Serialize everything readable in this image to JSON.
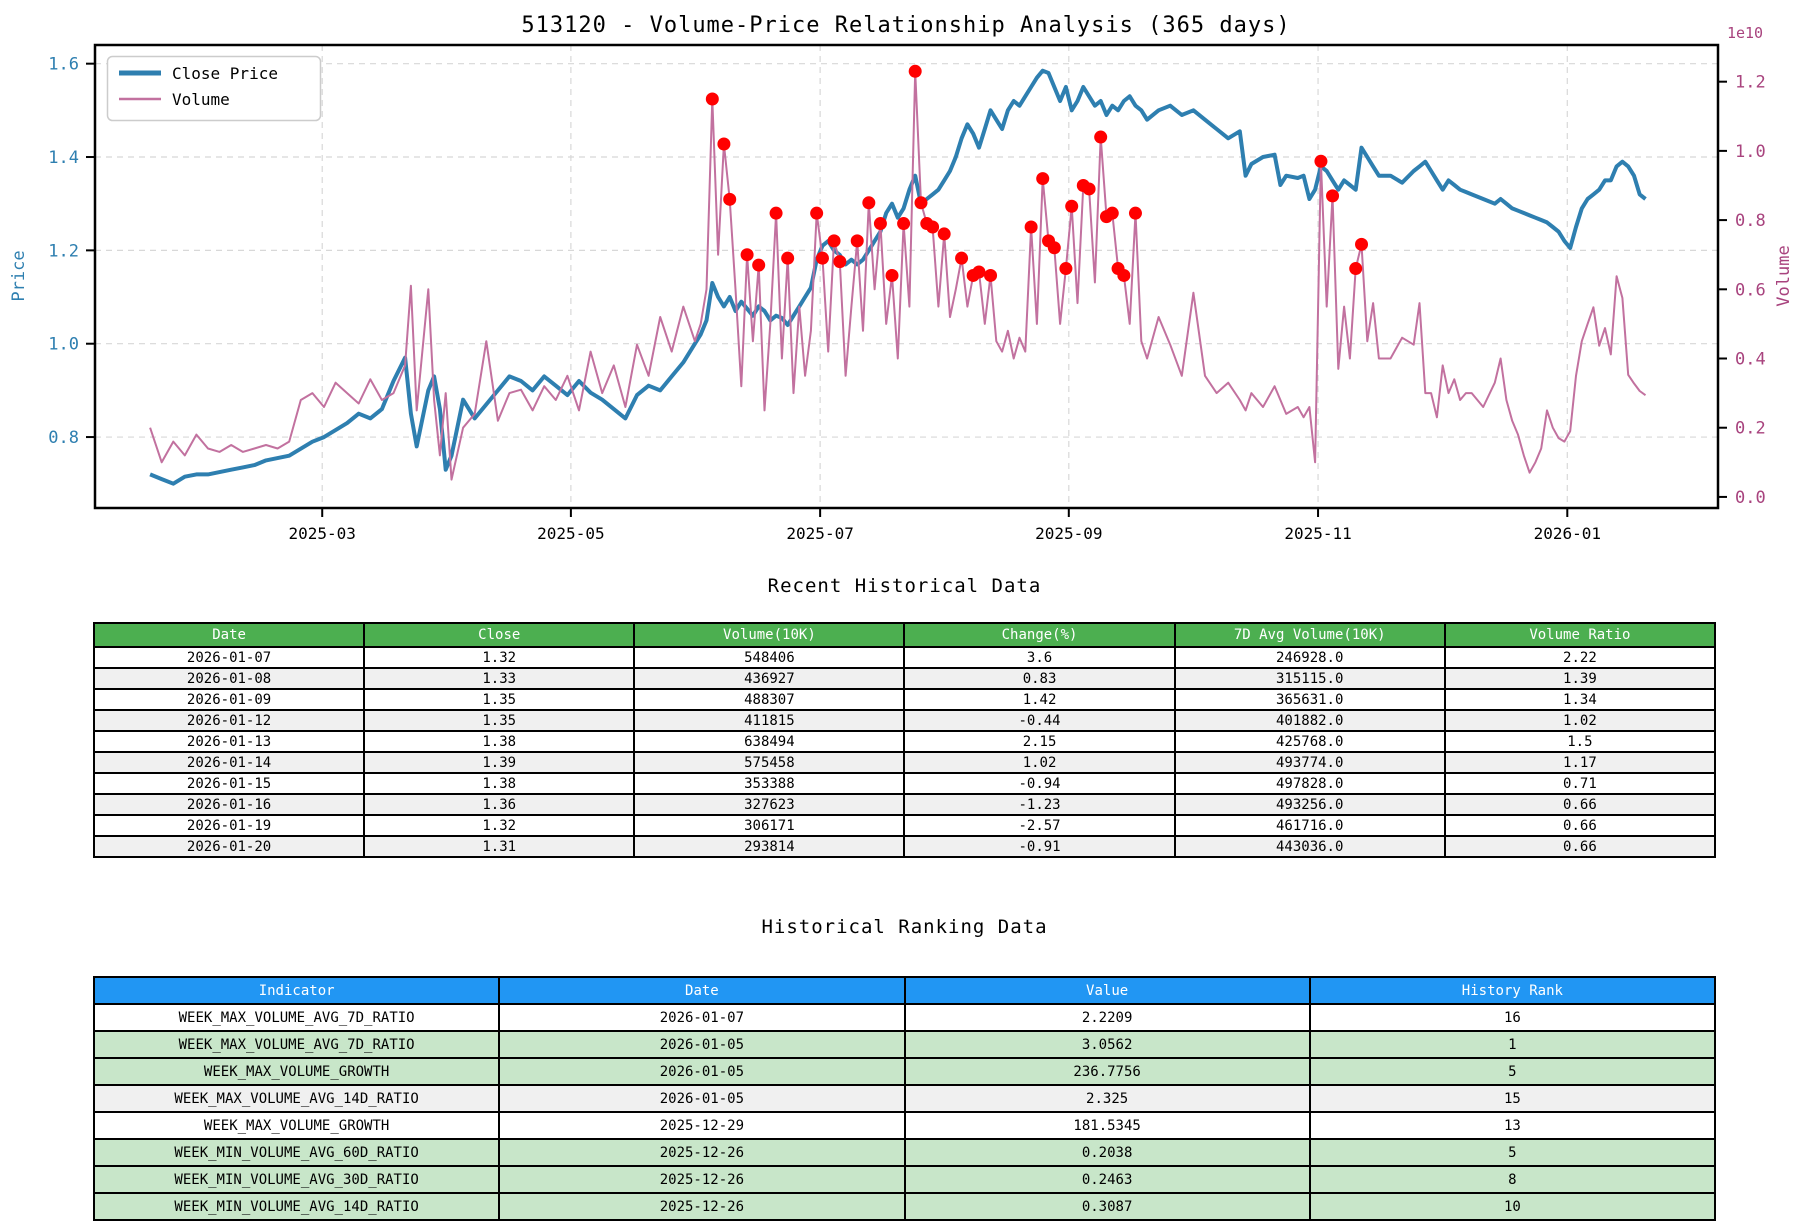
{
  "chart": {
    "title": "513120 - Volume-Price Relationship Analysis (365 days)",
    "offset_label": "1e10",
    "legend": {
      "close_label": "Close Price",
      "volume_label": "Volume"
    },
    "left_axis": {
      "label": "Price",
      "ticks": [
        0.8,
        1.0,
        1.2,
        1.4,
        1.6
      ],
      "color": "#2e7fb0"
    },
    "right_axis": {
      "label": "Volume",
      "ticks": [
        0.0,
        0.2,
        0.4,
        0.6,
        0.8,
        1.0,
        1.2
      ],
      "color": "#a8437e"
    },
    "x_axis": {
      "tick_labels": [
        "2025-03",
        "2025-05",
        "2025-07",
        "2025-09",
        "2025-11",
        "2026-01"
      ],
      "tick_days": [
        29.7,
        72.6,
        115.6,
        158.5,
        201.5,
        244.5
      ]
    },
    "colors": {
      "close_line": "#2e7fb0",
      "volume_line": "#c2719f",
      "spike_dot": "#ff0000",
      "grid": "#d8d8d8",
      "spine": "#000000"
    }
  },
  "chart_data": {
    "type": "line",
    "title": "513120 - Volume-Price Relationship Analysis (365 days)",
    "xlabel": "Recent Historical Data",
    "ylabel_left": "Price",
    "ylabel_right": "Volume",
    "x_unit": "trading-day index (2025-01-21 .. 2026-01-20)",
    "xlim": [
      -9.5,
      270.5
    ],
    "ylim_price": [
      0.648,
      1.64
    ],
    "ylim_volume_1e10": [
      -0.032,
      1.306
    ],
    "grid": true,
    "legend_position": "upper-left",
    "x": [
      0,
      2,
      4,
      6,
      8,
      10,
      12,
      14,
      16,
      18,
      20,
      22,
      24,
      26,
      28,
      30,
      32,
      34,
      36,
      38,
      40,
      42,
      44,
      45,
      46,
      48,
      49,
      50,
      51,
      52,
      54,
      56,
      58,
      60,
      62,
      64,
      66,
      68,
      70,
      72,
      74,
      76,
      78,
      80,
      82,
      84,
      86,
      88,
      90,
      92,
      94,
      95,
      96,
      97,
      98,
      99,
      100,
      101,
      102,
      103,
      104,
      105,
      106,
      107,
      108,
      109,
      110,
      111,
      112,
      113,
      114,
      115,
      116,
      117,
      118,
      119,
      120,
      121,
      122,
      123,
      124,
      125,
      126,
      127,
      128,
      129,
      130,
      131,
      132,
      133,
      134,
      135,
      136,
      137,
      138,
      139,
      140,
      141,
      142,
      143,
      144,
      145,
      146,
      147,
      148,
      149,
      150,
      151,
      152,
      153,
      154,
      155,
      156,
      157,
      158,
      159,
      160,
      161,
      162,
      163,
      164,
      165,
      166,
      167,
      168,
      169,
      170,
      171,
      172,
      174,
      176,
      178,
      180,
      182,
      184,
      186,
      188,
      189,
      190,
      192,
      194,
      195,
      196,
      198,
      199,
      200,
      201,
      202,
      203,
      204,
      205,
      206,
      207,
      208,
      209,
      210,
      211,
      212,
      214,
      216,
      218,
      219,
      220,
      221,
      222,
      223,
      224,
      225,
      226,
      227,
      228,
      230,
      232,
      233,
      234,
      235,
      236,
      237,
      238,
      239,
      240,
      241,
      242,
      243,
      244,
      245,
      246,
      247,
      248,
      249,
      250,
      251,
      252,
      253,
      254,
      255,
      256,
      257,
      258
    ],
    "series": [
      {
        "name": "Close Price",
        "axis": "left",
        "values": [
          0.72,
          0.71,
          0.7,
          0.715,
          0.72,
          0.72,
          0.725,
          0.73,
          0.735,
          0.74,
          0.75,
          0.755,
          0.76,
          0.775,
          0.79,
          0.8,
          0.815,
          0.83,
          0.85,
          0.84,
          0.86,
          0.92,
          0.97,
          0.85,
          0.78,
          0.9,
          0.93,
          0.86,
          0.73,
          0.76,
          0.88,
          0.84,
          0.87,
          0.9,
          0.93,
          0.92,
          0.9,
          0.93,
          0.91,
          0.89,
          0.92,
          0.895,
          0.88,
          0.86,
          0.84,
          0.89,
          0.91,
          0.9,
          0.93,
          0.96,
          1.0,
          1.02,
          1.05,
          1.13,
          1.1,
          1.08,
          1.1,
          1.07,
          1.09,
          1.075,
          1.06,
          1.08,
          1.07,
          1.05,
          1.06,
          1.055,
          1.04,
          1.06,
          1.08,
          1.1,
          1.12,
          1.18,
          1.21,
          1.22,
          1.2,
          1.19,
          1.17,
          1.18,
          1.17,
          1.18,
          1.2,
          1.22,
          1.24,
          1.28,
          1.3,
          1.27,
          1.29,
          1.33,
          1.36,
          1.3,
          1.31,
          1.32,
          1.33,
          1.35,
          1.37,
          1.4,
          1.44,
          1.47,
          1.45,
          1.42,
          1.46,
          1.5,
          1.48,
          1.46,
          1.5,
          1.52,
          1.51,
          1.53,
          1.55,
          1.57,
          1.585,
          1.58,
          1.55,
          1.52,
          1.55,
          1.5,
          1.52,
          1.55,
          1.53,
          1.51,
          1.52,
          1.49,
          1.51,
          1.5,
          1.52,
          1.53,
          1.51,
          1.5,
          1.48,
          1.5,
          1.51,
          1.49,
          1.5,
          1.48,
          1.46,
          1.44,
          1.455,
          1.36,
          1.385,
          1.4,
          1.405,
          1.34,
          1.36,
          1.355,
          1.36,
          1.31,
          1.33,
          1.38,
          1.37,
          1.35,
          1.33,
          1.35,
          1.34,
          1.33,
          1.42,
          1.4,
          1.38,
          1.36,
          1.36,
          1.345,
          1.37,
          1.38,
          1.39,
          1.37,
          1.35,
          1.33,
          1.35,
          1.34,
          1.33,
          1.325,
          1.32,
          1.31,
          1.3,
          1.31,
          1.3,
          1.29,
          1.285,
          1.28,
          1.275,
          1.27,
          1.265,
          1.26,
          1.25,
          1.24,
          1.22,
          1.205,
          1.25,
          1.29,
          1.31,
          1.32,
          1.33,
          1.35,
          1.35,
          1.38,
          1.39,
          1.38,
          1.36,
          1.32,
          1.31
        ]
      },
      {
        "name": "Volume",
        "axis": "right",
        "unit": "1e10",
        "values": [
          0.2,
          0.1,
          0.16,
          0.12,
          0.18,
          0.14,
          0.13,
          0.15,
          0.13,
          0.14,
          0.15,
          0.14,
          0.16,
          0.28,
          0.3,
          0.26,
          0.33,
          0.3,
          0.27,
          0.34,
          0.28,
          0.3,
          0.38,
          0.61,
          0.25,
          0.6,
          0.28,
          0.12,
          0.3,
          0.05,
          0.2,
          0.24,
          0.45,
          0.22,
          0.3,
          0.31,
          0.25,
          0.32,
          0.28,
          0.35,
          0.25,
          0.42,
          0.3,
          0.38,
          0.26,
          0.44,
          0.35,
          0.52,
          0.42,
          0.55,
          0.45,
          0.5,
          0.6,
          1.15,
          0.7,
          1.02,
          0.86,
          0.6,
          0.32,
          0.7,
          0.45,
          0.67,
          0.25,
          0.5,
          0.82,
          0.4,
          0.69,
          0.3,
          0.55,
          0.35,
          0.48,
          0.82,
          0.69,
          0.42,
          0.74,
          0.68,
          0.35,
          0.55,
          0.74,
          0.48,
          0.85,
          0.6,
          0.79,
          0.5,
          0.64,
          0.4,
          0.79,
          0.55,
          1.23,
          0.85,
          0.79,
          0.78,
          0.55,
          0.76,
          0.52,
          0.6,
          0.69,
          0.55,
          0.64,
          0.65,
          0.5,
          0.64,
          0.45,
          0.42,
          0.48,
          0.4,
          0.46,
          0.42,
          0.78,
          0.5,
          0.92,
          0.74,
          0.72,
          0.5,
          0.66,
          0.84,
          0.56,
          0.9,
          0.89,
          0.62,
          1.04,
          0.81,
          0.82,
          0.66,
          0.64,
          0.5,
          0.82,
          0.45,
          0.4,
          0.52,
          0.44,
          0.35,
          0.59,
          0.35,
          0.3,
          0.33,
          0.28,
          0.25,
          0.3,
          0.26,
          0.32,
          0.28,
          0.24,
          0.26,
          0.23,
          0.26,
          0.1,
          0.97,
          0.55,
          0.87,
          0.37,
          0.55,
          0.4,
          0.66,
          0.73,
          0.45,
          0.56,
          0.4,
          0.4,
          0.46,
          0.44,
          0.56,
          0.3,
          0.3,
          0.23,
          0.38,
          0.3,
          0.34,
          0.28,
          0.3,
          0.3,
          0.26,
          0.33,
          0.4,
          0.28,
          0.22,
          0.18,
          0.12,
          0.07,
          0.1,
          0.14,
          0.25,
          0.2,
          0.17,
          0.16,
          0.19,
          0.35,
          0.45,
          0.5,
          0.548,
          0.437,
          0.488,
          0.412,
          0.638,
          0.575,
          0.353,
          0.328,
          0.306,
          0.294
        ]
      }
    ],
    "volume_spike_marker_days": [
      97,
      99,
      100,
      103,
      105,
      108,
      110,
      115,
      116,
      118,
      119,
      122,
      124,
      126,
      128,
      130,
      132,
      133,
      134,
      135,
      137,
      140,
      142,
      143,
      145,
      152,
      154,
      155,
      156,
      158,
      159,
      161,
      162,
      164,
      165,
      166,
      167,
      168,
      170,
      202,
      204,
      208,
      209
    ]
  },
  "recent_table": {
    "title": "Recent Historical Data",
    "columns": [
      "Date",
      "Close",
      "Volume(10K)",
      "Change(%)",
      "7D Avg Volume(10K)",
      "Volume Ratio"
    ],
    "rows": [
      [
        "2026-01-07",
        "1.32",
        "548406",
        "3.6",
        "246928.0",
        "2.22"
      ],
      [
        "2026-01-08",
        "1.33",
        "436927",
        "0.83",
        "315115.0",
        "1.39"
      ],
      [
        "2026-01-09",
        "1.35",
        "488307",
        "1.42",
        "365631.0",
        "1.34"
      ],
      [
        "2026-01-12",
        "1.35",
        "411815",
        "-0.44",
        "401882.0",
        "1.02"
      ],
      [
        "2026-01-13",
        "1.38",
        "638494",
        "2.15",
        "425768.0",
        "1.5"
      ],
      [
        "2026-01-14",
        "1.39",
        "575458",
        "1.02",
        "493774.0",
        "1.17"
      ],
      [
        "2026-01-15",
        "1.38",
        "353388",
        "-0.94",
        "497828.0",
        "0.71"
      ],
      [
        "2026-01-16",
        "1.36",
        "327623",
        "-1.23",
        "493256.0",
        "0.66"
      ],
      [
        "2026-01-19",
        "1.32",
        "306171",
        "-2.57",
        "461716.0",
        "0.66"
      ],
      [
        "2026-01-20",
        "1.31",
        "293814",
        "-0.91",
        "443036.0",
        "0.66"
      ]
    ]
  },
  "ranking_table": {
    "title": "Historical Ranking Data",
    "columns": [
      "Indicator",
      "Date",
      "Value",
      "History Rank"
    ],
    "rows": [
      [
        "WEEK_MAX_VOLUME_AVG_7D_RATIO",
        "2026-01-07",
        "2.2209",
        "16"
      ],
      [
        "WEEK_MAX_VOLUME_AVG_7D_RATIO",
        "2026-01-05",
        "3.0562",
        "1"
      ],
      [
        "WEEK_MAX_VOLUME_GROWTH",
        "2026-01-05",
        "236.7756",
        "5"
      ],
      [
        "WEEK_MAX_VOLUME_AVG_14D_RATIO",
        "2026-01-05",
        "2.325",
        "15"
      ],
      [
        "WEEK_MAX_VOLUME_GROWTH",
        "2025-12-29",
        "181.5345",
        "13"
      ],
      [
        "WEEK_MIN_VOLUME_AVG_60D_RATIO",
        "2025-12-26",
        "0.2038",
        "5"
      ],
      [
        "WEEK_MIN_VOLUME_AVG_30D_RATIO",
        "2025-12-26",
        "0.2463",
        "8"
      ],
      [
        "WEEK_MIN_VOLUME_AVG_14D_RATIO",
        "2025-12-26",
        "0.3087",
        "10"
      ]
    ],
    "row_styles": [
      "white",
      "green",
      "green",
      "gray",
      "white",
      "green",
      "green",
      "green"
    ]
  }
}
